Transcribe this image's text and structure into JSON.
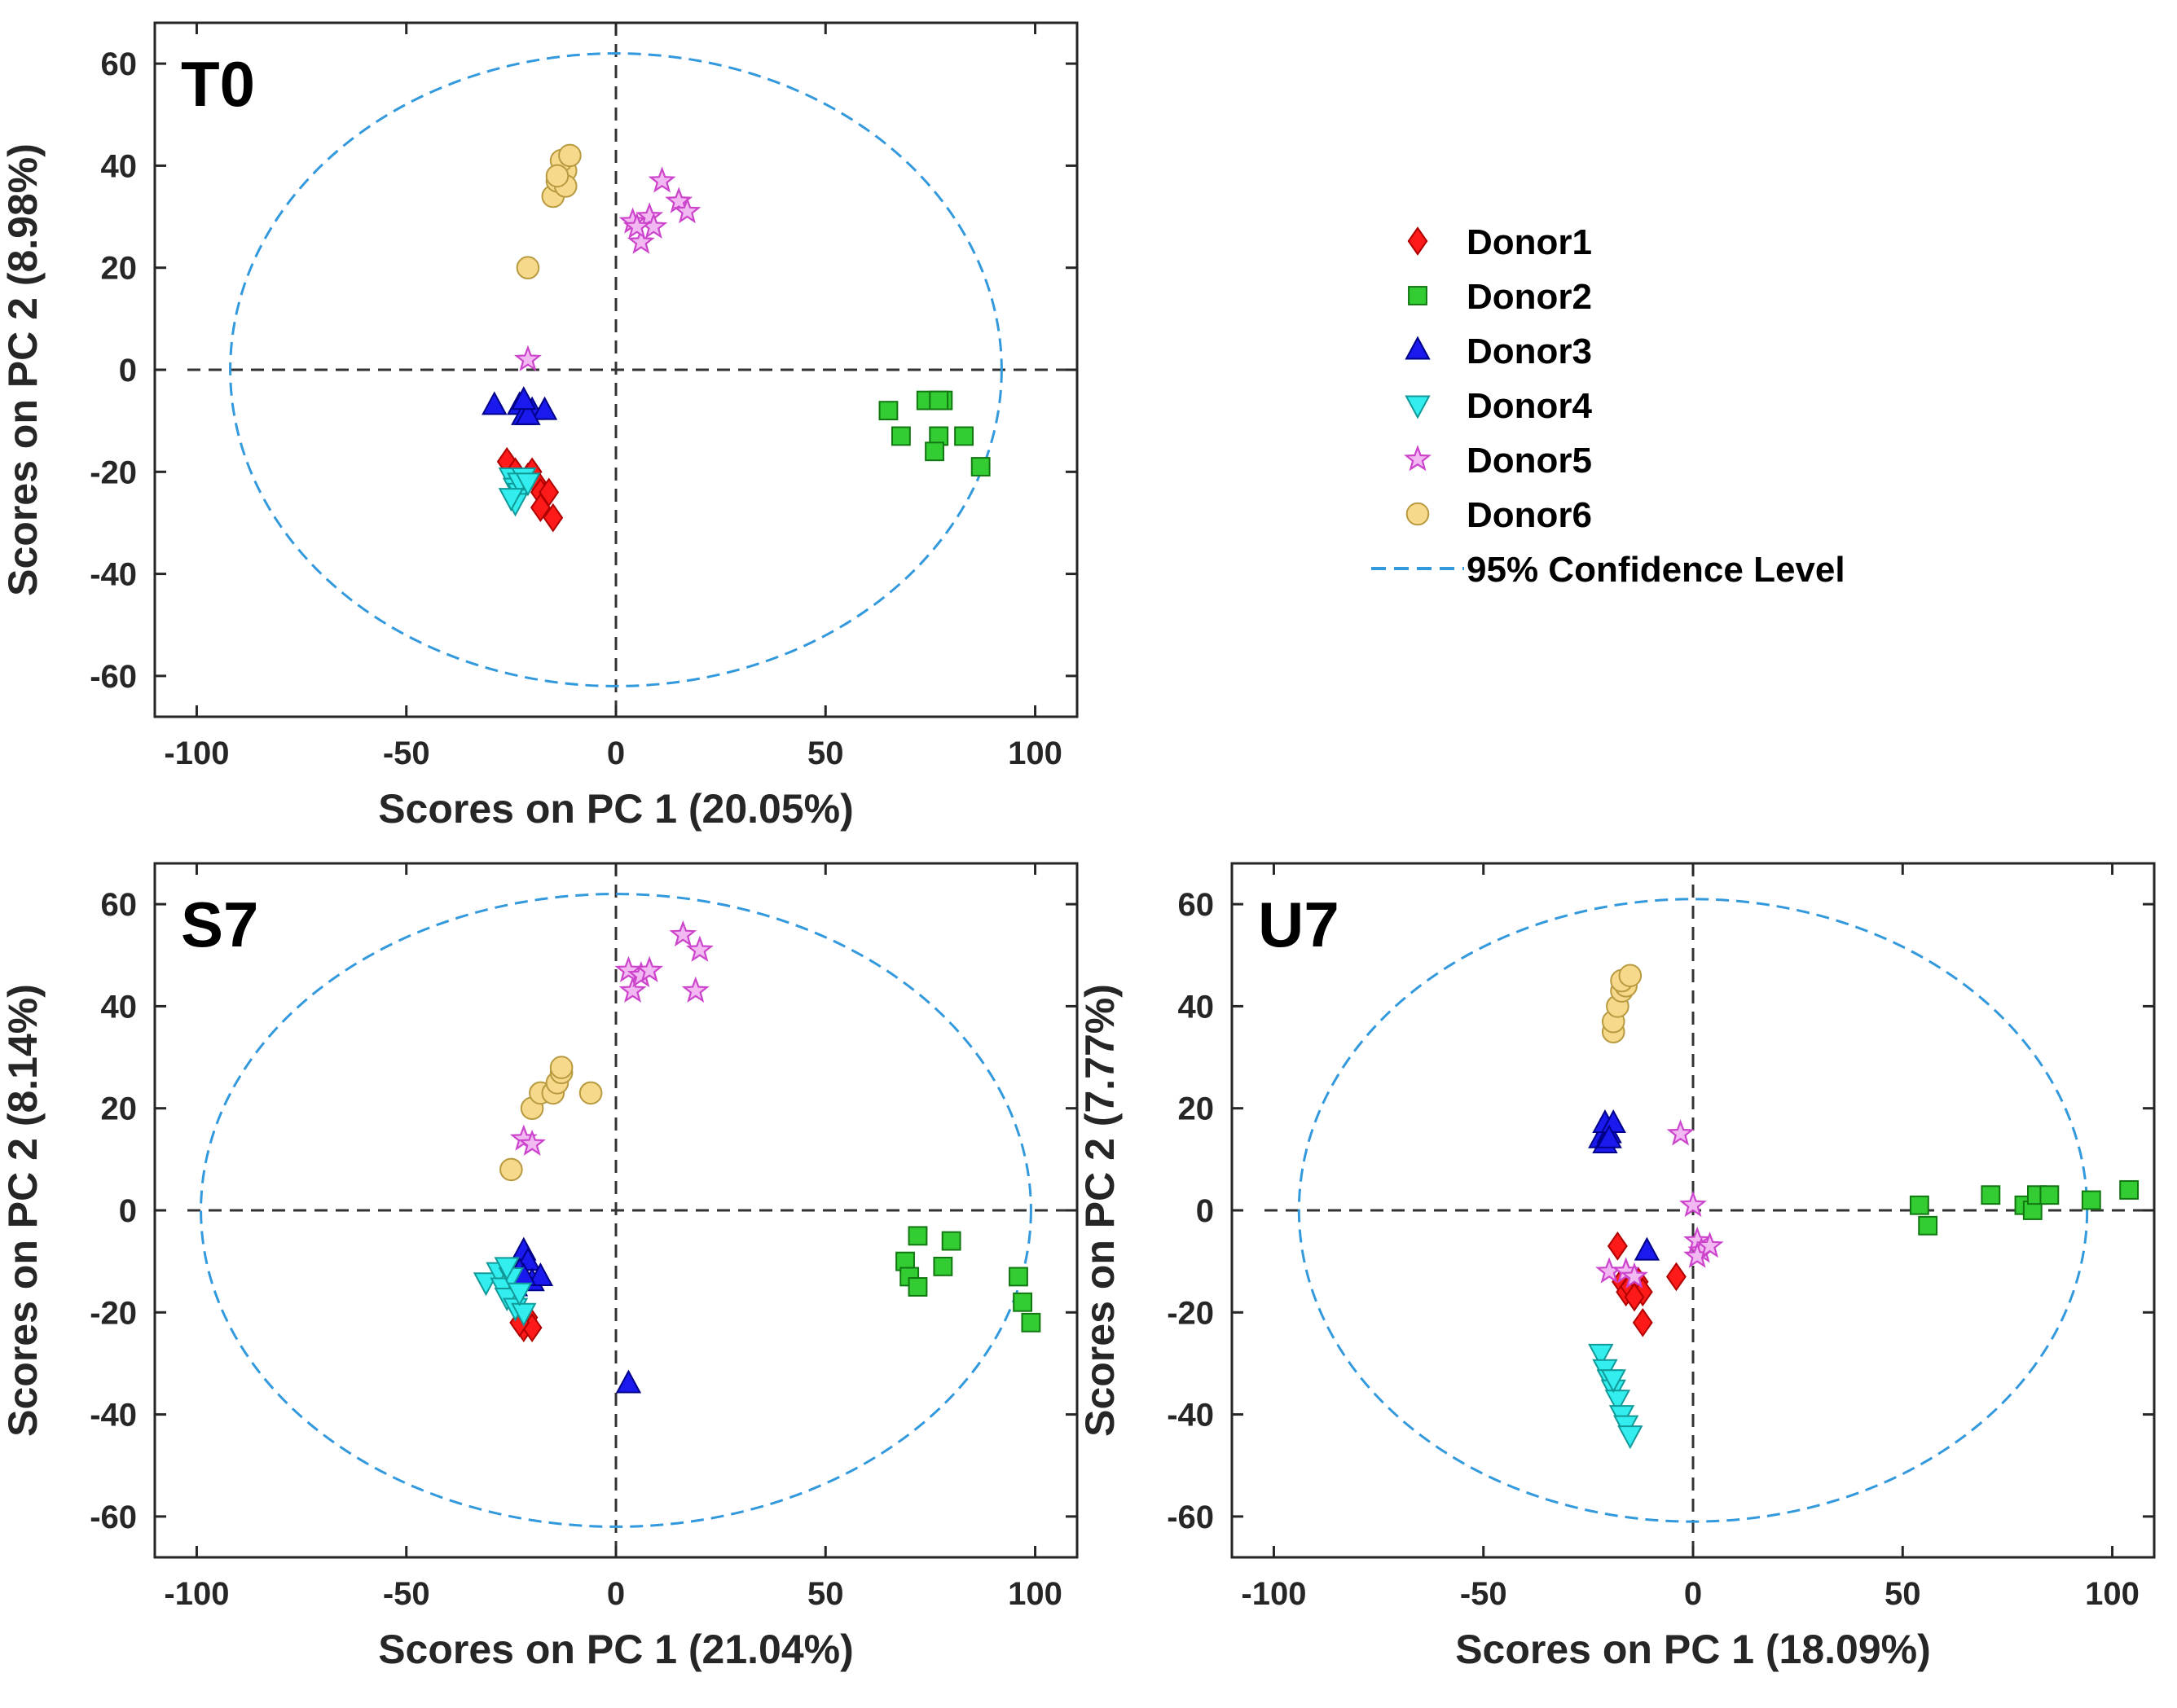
{
  "legend": {
    "entries": [
      {
        "key": "donor1",
        "label": "Donor1"
      },
      {
        "key": "donor2",
        "label": "Donor2"
      },
      {
        "key": "donor3",
        "label": "Donor3"
      },
      {
        "key": "donor4",
        "label": "Donor4"
      },
      {
        "key": "donor5",
        "label": "Donor5"
      },
      {
        "key": "donor6",
        "label": "Donor6"
      }
    ],
    "confidence_label": "95% Confidence Level",
    "placement": "right of T0 panel"
  },
  "styles": {
    "donor1": {
      "marker": "diamond",
      "fill": "#ff1a1a",
      "stroke": "#b00000"
    },
    "donor2": {
      "marker": "square",
      "fill": "#33cc33",
      "stroke": "#117711"
    },
    "donor3": {
      "marker": "triangle-up",
      "fill": "#1a1aee",
      "stroke": "#000088"
    },
    "donor4": {
      "marker": "triangle-down",
      "fill": "#33eeee",
      "stroke": "#119999"
    },
    "donor5": {
      "marker": "star",
      "fill": "#f2b8f2",
      "stroke": "#cc44cc"
    },
    "donor6": {
      "marker": "circle",
      "fill": "#f7d98c",
      "stroke": "#b89a40"
    },
    "ellipse": "#3399dd",
    "zero_line": "#333333"
  },
  "chart_data": [
    {
      "id": "t0",
      "type": "scatter",
      "title": "T0",
      "xlabel": "Scores on PC 1 (20.05%)",
      "ylabel": "Scores on PC 2 (8.98%)",
      "xlim": [
        -110,
        110
      ],
      "ylim": [
        -68,
        68
      ],
      "xticks": [
        -100,
        -50,
        0,
        50,
        100
      ],
      "yticks": [
        60,
        40,
        20,
        0,
        -20,
        -40,
        -60
      ],
      "ellipse": {
        "rx": 92,
        "ry": 62
      },
      "series": [
        {
          "key": "donor1",
          "points": [
            [
              -26,
              -18
            ],
            [
              -24,
              -20
            ],
            [
              -21,
              -21
            ],
            [
              -19,
              -22
            ],
            [
              -18,
              -24
            ],
            [
              -16,
              -24
            ],
            [
              -18,
              -27
            ],
            [
              -15,
              -29
            ],
            [
              -20,
              -20
            ]
          ]
        },
        {
          "key": "donor2",
          "points": [
            [
              65,
              -8
            ],
            [
              68,
              -13
            ],
            [
              74,
              -6
            ],
            [
              78,
              -6
            ],
            [
              77,
              -13
            ],
            [
              76,
              -16
            ],
            [
              83,
              -13
            ],
            [
              87,
              -19
            ],
            [
              77,
              -6
            ]
          ]
        },
        {
          "key": "donor3",
          "points": [
            [
              -29,
              -7
            ],
            [
              -23,
              -7
            ],
            [
              -22,
              -9
            ],
            [
              -20,
              -8
            ],
            [
              -17,
              -8
            ],
            [
              -21,
              -9
            ],
            [
              -22,
              -6
            ]
          ]
        },
        {
          "key": "donor4",
          "points": [
            [
              -25,
              -21
            ],
            [
              -24,
              -23
            ],
            [
              -23,
              -24
            ],
            [
              -22,
              -21
            ],
            [
              -24,
              -26
            ],
            [
              -23,
              -22
            ],
            [
              -21,
              -22
            ],
            [
              -25,
              -25
            ]
          ]
        },
        {
          "key": "donor5",
          "points": [
            [
              -21,
              2
            ],
            [
              4,
              29
            ],
            [
              6,
              25
            ],
            [
              8,
              30
            ],
            [
              9,
              28
            ],
            [
              11,
              37
            ],
            [
              15,
              33
            ],
            [
              17,
              31
            ],
            [
              5,
              28
            ]
          ]
        },
        {
          "key": "donor6",
          "points": [
            [
              -21,
              20
            ],
            [
              -15,
              34
            ],
            [
              -14,
              37
            ],
            [
              -12,
              39
            ],
            [
              -13,
              41
            ],
            [
              -11,
              42
            ],
            [
              -12,
              36
            ],
            [
              -14,
              38
            ]
          ]
        }
      ]
    },
    {
      "id": "s7",
      "type": "scatter",
      "title": "S7",
      "xlabel": "Scores on PC 1 (21.04%)",
      "ylabel": "Scores on PC 2 (8.14%)",
      "xlim": [
        -110,
        110
      ],
      "ylim": [
        -68,
        68
      ],
      "xticks": [
        -100,
        -50,
        0,
        50,
        100
      ],
      "yticks": [
        60,
        40,
        20,
        0,
        -20,
        -40,
        -60
      ],
      "ellipse": {
        "rx": 99,
        "ry": 62
      },
      "series": [
        {
          "key": "donor1",
          "points": [
            [
              -21,
              -21
            ],
            [
              -22,
              -23
            ],
            [
              -20,
              -23
            ],
            [
              -23,
              -22
            ]
          ]
        },
        {
          "key": "donor2",
          "points": [
            [
              69,
              -10
            ],
            [
              70,
              -13
            ],
            [
              72,
              -15
            ],
            [
              72,
              -5
            ],
            [
              78,
              -11
            ],
            [
              80,
              -6
            ],
            [
              96,
              -13
            ],
            [
              97,
              -18
            ],
            [
              99,
              -22
            ]
          ]
        },
        {
          "key": "donor3",
          "points": [
            [
              -22,
              -8
            ],
            [
              -21,
              -10
            ],
            [
              -23,
              -12
            ],
            [
              -20,
              -14
            ],
            [
              -24,
              -15
            ],
            [
              -18,
              -13
            ],
            [
              -22,
              -13
            ],
            [
              3,
              -34
            ]
          ]
        },
        {
          "key": "donor4",
          "points": [
            [
              -31,
              -14
            ],
            [
              -28,
              -12
            ],
            [
              -27,
              -15
            ],
            [
              -26,
              -17
            ],
            [
              -25,
              -13
            ],
            [
              -24,
              -19
            ],
            [
              -22,
              -20
            ],
            [
              -26,
              -11
            ],
            [
              -23,
              -16
            ]
          ]
        },
        {
          "key": "donor5",
          "points": [
            [
              -22,
              14
            ],
            [
              -20,
              13
            ],
            [
              3,
              47
            ],
            [
              4,
              43
            ],
            [
              6,
              46
            ],
            [
              8,
              47
            ],
            [
              16,
              54
            ],
            [
              20,
              51
            ],
            [
              19,
              43
            ]
          ]
        },
        {
          "key": "donor6",
          "points": [
            [
              -25,
              8
            ],
            [
              -20,
              20
            ],
            [
              -18,
              23
            ],
            [
              -15,
              23
            ],
            [
              -14,
              25
            ],
            [
              -13,
              27
            ],
            [
              -13,
              28
            ],
            [
              -6,
              23
            ]
          ]
        }
      ]
    },
    {
      "id": "u7",
      "type": "scatter",
      "title": "U7",
      "xlabel": "Scores on PC 1 (18.09%)",
      "ylabel": "Scores on PC 2 (7.77%)",
      "xlim": [
        -110,
        110
      ],
      "ylim": [
        -68,
        68
      ],
      "xticks": [
        -100,
        -50,
        0,
        50,
        100
      ],
      "yticks": [
        60,
        40,
        20,
        0,
        -20,
        -40,
        -60
      ],
      "ellipse": {
        "rx": 94,
        "ry": 61
      },
      "series": [
        {
          "key": "donor1",
          "points": [
            [
              -18,
              -7
            ],
            [
              -17,
              -14
            ],
            [
              -16,
              -16
            ],
            [
              -15,
              -15
            ],
            [
              -13,
              -14
            ],
            [
              -12,
              -16
            ],
            [
              -12,
              -22
            ],
            [
              -4,
              -13
            ],
            [
              -14,
              -17
            ]
          ]
        },
        {
          "key": "donor2",
          "points": [
            [
              54,
              1
            ],
            [
              56,
              -3
            ],
            [
              71,
              3
            ],
            [
              79,
              1
            ],
            [
              81,
              0
            ],
            [
              82,
              3
            ],
            [
              85,
              3
            ],
            [
              95,
              2
            ],
            [
              104,
              4
            ]
          ]
        },
        {
          "key": "donor3",
          "points": [
            [
              -22,
              14
            ],
            [
              -21,
              17
            ],
            [
              -20,
              15
            ],
            [
              -21,
              13
            ],
            [
              -19,
              17
            ],
            [
              -20,
              14
            ],
            [
              -11,
              -8
            ]
          ]
        },
        {
          "key": "donor4",
          "points": [
            [
              -22,
              -28
            ],
            [
              -21,
              -31
            ],
            [
              -20,
              -33
            ],
            [
              -19,
              -35
            ],
            [
              -18,
              -37
            ],
            [
              -17,
              -40
            ],
            [
              -16,
              -42
            ],
            [
              -15,
              -44
            ],
            [
              -19,
              -33
            ]
          ]
        },
        {
          "key": "donor5",
          "points": [
            [
              -20,
              -12
            ],
            [
              -16,
              -12
            ],
            [
              -14,
              -13
            ],
            [
              -3,
              15
            ],
            [
              0,
              1
            ],
            [
              1,
              -6
            ],
            [
              2,
              -8
            ],
            [
              1,
              -9
            ],
            [
              4,
              -7
            ]
          ]
        },
        {
          "key": "donor6",
          "points": [
            [
              -19,
              35
            ],
            [
              -19,
              37
            ],
            [
              -18,
              40
            ],
            [
              -17,
              43
            ],
            [
              -16,
              44
            ],
            [
              -17,
              45
            ],
            [
              -15,
              46
            ]
          ]
        }
      ]
    }
  ]
}
